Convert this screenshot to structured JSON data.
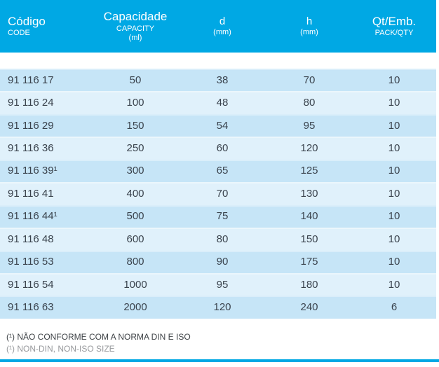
{
  "table": {
    "header": {
      "col_code": {
        "primary": "Código",
        "secondary": "CODE"
      },
      "col_capacity": {
        "primary": "Capacidade",
        "secondary": "CAPACITY",
        "unit": "(ml)"
      },
      "col_d": {
        "primary": "d",
        "unit": "(mm)"
      },
      "col_h": {
        "primary": "h",
        "unit": "(mm)"
      },
      "col_qty": {
        "primary": "Qt/Emb.",
        "secondary": "PACK/QTY"
      }
    },
    "rows": [
      {
        "code": "91 116 17",
        "capacity": "50",
        "d": "38",
        "h": "70",
        "qty": "10"
      },
      {
        "code": "91 116 24",
        "capacity": "100",
        "d": "48",
        "h": "80",
        "qty": "10"
      },
      {
        "code": "91 116 29",
        "capacity": "150",
        "d": "54",
        "h": "95",
        "qty": "10"
      },
      {
        "code": "91 116 36",
        "capacity": "250",
        "d": "60",
        "h": "120",
        "qty": "10"
      },
      {
        "code": "91 116 39¹",
        "capacity": "300",
        "d": "65",
        "h": "125",
        "qty": "10"
      },
      {
        "code": "91 116 41",
        "capacity": "400",
        "d": "70",
        "h": "130",
        "qty": "10"
      },
      {
        "code": "91 116 44¹",
        "capacity": "500",
        "d": "75",
        "h": "140",
        "qty": "10"
      },
      {
        "code": "91 116 48",
        "capacity": "600",
        "d": "80",
        "h": "150",
        "qty": "10"
      },
      {
        "code": "91 116 53",
        "capacity": "800",
        "d": "90",
        "h": "175",
        "qty": "10"
      },
      {
        "code": "91 116 54",
        "capacity": "1000",
        "d": "95",
        "h": "180",
        "qty": "10"
      },
      {
        "code": "91 116 63",
        "capacity": "2000",
        "d": "120",
        "h": "240",
        "qty": "6"
      }
    ]
  },
  "footnotes": {
    "pt": "(¹) NÃO CONFORME COM A NORMA DIN E ISO",
    "en": "(¹) NON-DIN, NON-ISO SIZE"
  },
  "colors": {
    "header_bg": "#00A8E4",
    "row_odd": "#C6E5F7",
    "row_even": "#E0F1FB",
    "accent_line": "#00A8E4",
    "text_dark": "#3A434D",
    "footnote_primary": "#3F4347",
    "footnote_secondary": "#97999C"
  }
}
